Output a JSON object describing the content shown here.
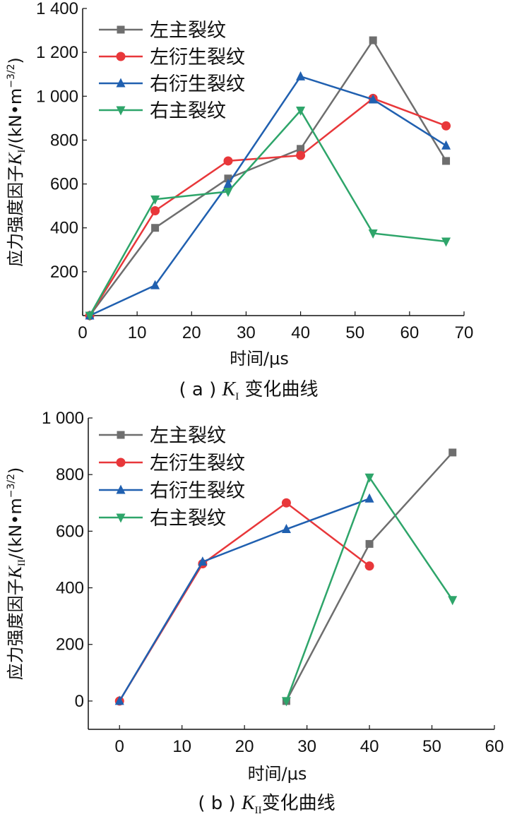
{
  "chart_data": [
    {
      "type": "line",
      "caption_prefix": "( a ) ",
      "caption_symbol": "K",
      "caption_sub": "I",
      "caption_suffix": " 变化曲线",
      "xlabel": "时间/μs",
      "ylabel_prefix": "应力强度因子",
      "ylabel_symbol": "K",
      "ylabel_sub": "I",
      "ylabel_suffix": "/(kN•m",
      "ylabel_exp": "−3/2",
      "ylabel_close": ")",
      "xlim": [
        0,
        70
      ],
      "ylim": [
        0,
        1400
      ],
      "xticks": [
        0,
        10,
        20,
        30,
        40,
        50,
        60,
        70
      ],
      "xtick_labels": [
        "0",
        "10",
        "20",
        "30",
        "40",
        "50",
        "60",
        "70"
      ],
      "yticks": [
        200,
        400,
        600,
        800,
        1000,
        1200,
        1400
      ],
      "ytick_labels": [
        "200",
        "400",
        "600",
        "800",
        "1 000",
        "1 200",
        "1 400"
      ],
      "legend_position": "top-left",
      "series": [
        {
          "name": "左主裂纹",
          "color": "#6e6e6e",
          "marker": "square",
          "x": [
            1.3,
            13.3,
            26.7,
            40,
            53.3,
            66.7
          ],
          "y": [
            0,
            400,
            625,
            760,
            1255,
            705
          ]
        },
        {
          "name": "左衍生裂纹",
          "color": "#e8373a",
          "marker": "circle",
          "x": [
            1.3,
            13.3,
            26.7,
            40,
            53.3,
            66.7
          ],
          "y": [
            0,
            478,
            705,
            730,
            990,
            865
          ]
        },
        {
          "name": "右衍生裂纹",
          "color": "#2060b0",
          "marker": "triangle-up",
          "x": [
            1.3,
            13.3,
            26.7,
            40,
            53.3,
            66.7
          ],
          "y": [
            0,
            138,
            600,
            1090,
            985,
            775
          ]
        },
        {
          "name": "右主裂纹",
          "color": "#2ea56a",
          "marker": "triangle-down",
          "x": [
            1.3,
            13.3,
            26.7,
            40,
            53.3,
            66.7
          ],
          "y": [
            0,
            530,
            565,
            935,
            375,
            338
          ]
        }
      ]
    },
    {
      "type": "line",
      "caption_prefix": "( b ) ",
      "caption_symbol": "K",
      "caption_sub": "II",
      "caption_suffix": "变化曲线",
      "xlabel": "时间/μs",
      "ylabel_prefix": "应力强度因子",
      "ylabel_symbol": "K",
      "ylabel_sub": "II",
      "ylabel_suffix": "/(kN•m",
      "ylabel_exp": "−3/2",
      "ylabel_close": ")",
      "xlim": [
        -5,
        60
      ],
      "ylim": [
        -100,
        1000
      ],
      "xticks": [
        0,
        10,
        20,
        30,
        40,
        50,
        60
      ],
      "xtick_labels": [
        "0",
        "10",
        "20",
        "30",
        "40",
        "50",
        "60"
      ],
      "yticks": [
        0,
        200,
        400,
        600,
        800,
        1000
      ],
      "ytick_labels": [
        "0",
        "200",
        "400",
        "600",
        "800",
        "1 000"
      ],
      "legend_position": "top-left",
      "series": [
        {
          "name": "左主裂纹",
          "color": "#6e6e6e",
          "marker": "square",
          "x": [
            26.7,
            40,
            53.3
          ],
          "y": [
            0,
            555,
            878
          ]
        },
        {
          "name": "左衍生裂纹",
          "color": "#e8373a",
          "marker": "circle",
          "x": [
            0,
            13.3,
            26.7,
            40
          ],
          "y": [
            0,
            485,
            700,
            477
          ]
        },
        {
          "name": "右衍生裂纹",
          "color": "#2060b0",
          "marker": "triangle-up",
          "x": [
            0,
            13.3,
            26.7,
            40
          ],
          "y": [
            0,
            492,
            607,
            715
          ]
        },
        {
          "name": "右主裂纹",
          "color": "#2ea56a",
          "marker": "triangle-down",
          "x": [
            26.7,
            40,
            53.3
          ],
          "y": [
            0,
            790,
            357
          ]
        }
      ]
    }
  ]
}
